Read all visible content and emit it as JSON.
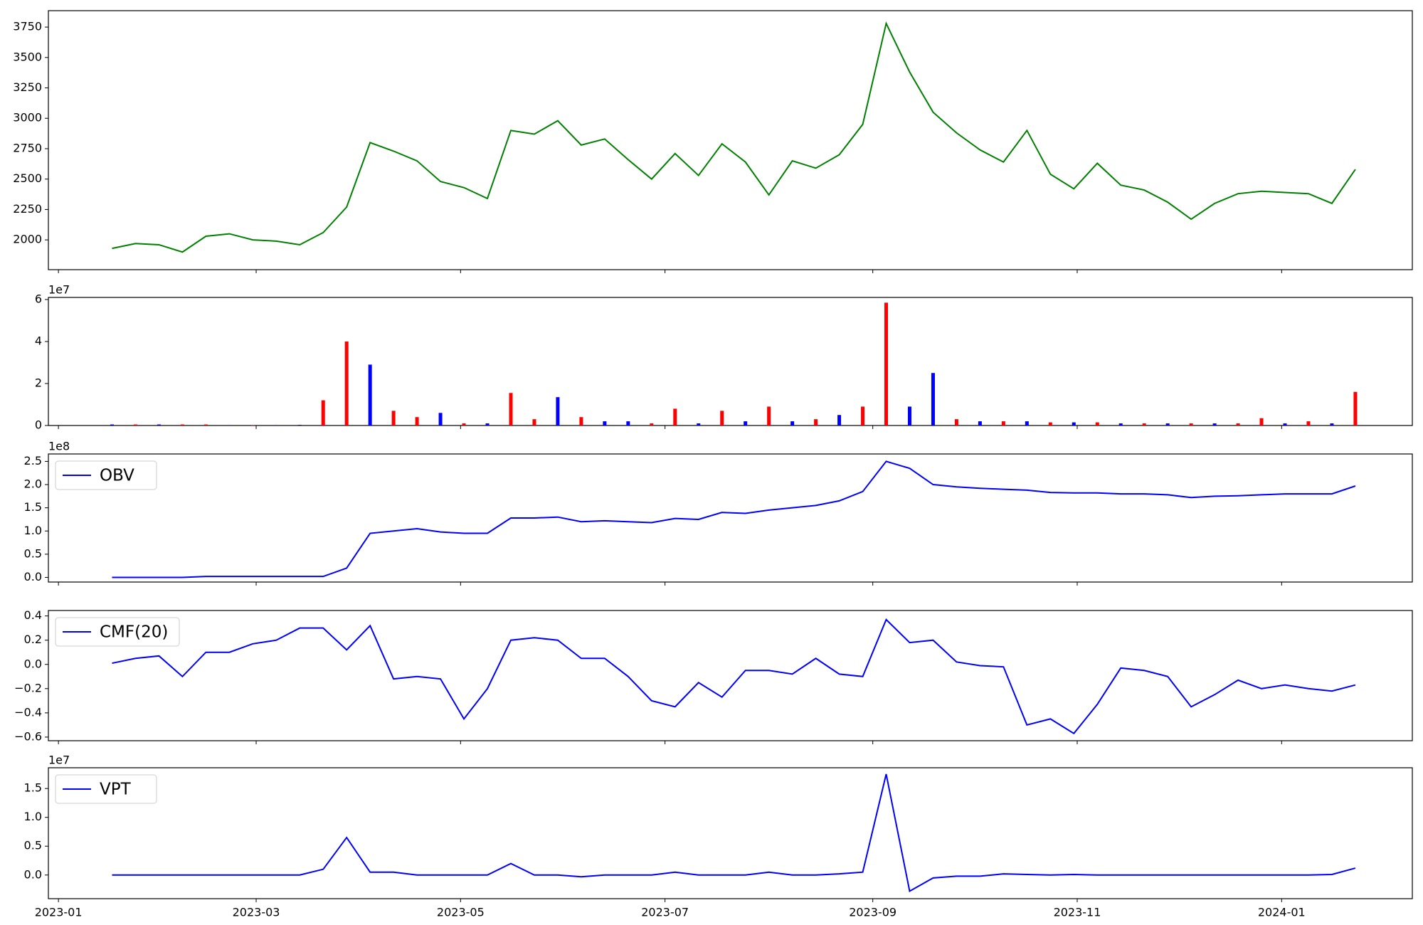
{
  "chart_data": {
    "type": "panels",
    "x": [
      "2023-01-17",
      "2023-01-24",
      "2023-01-31",
      "2023-02-07",
      "2023-02-14",
      "2023-02-21",
      "2023-02-28",
      "2023-03-07",
      "2023-03-14",
      "2023-03-21",
      "2023-03-28",
      "2023-04-04",
      "2023-04-11",
      "2023-04-18",
      "2023-04-25",
      "2023-05-02",
      "2023-05-09",
      "2023-05-16",
      "2023-05-23",
      "2023-05-30",
      "2023-06-06",
      "2023-06-13",
      "2023-06-20",
      "2023-06-27",
      "2023-07-04",
      "2023-07-11",
      "2023-07-18",
      "2023-07-25",
      "2023-08-01",
      "2023-08-08",
      "2023-08-15",
      "2023-08-22",
      "2023-08-29",
      "2023-09-05",
      "2023-09-12",
      "2023-09-19",
      "2023-09-26",
      "2023-10-03",
      "2023-10-10",
      "2023-10-17",
      "2023-10-24",
      "2023-10-31",
      "2023-11-07",
      "2023-11-14",
      "2023-11-21",
      "2023-11-28",
      "2023-12-05",
      "2023-12-12",
      "2023-12-19",
      "2023-12-26",
      "2024-01-02",
      "2024-01-09",
      "2024-01-16",
      "2024-01-23"
    ],
    "xlim": [
      "2022-12-29",
      "2024-02-09"
    ],
    "xticks": [
      {
        "value": "2023-01-01",
        "label": "2023-01"
      },
      {
        "value": "2023-03-01",
        "label": "2023-03"
      },
      {
        "value": "2023-05-01",
        "label": "2023-05"
      },
      {
        "value": "2023-07-01",
        "label": "2023-07"
      },
      {
        "value": "2023-09-01",
        "label": "2023-09"
      },
      {
        "value": "2023-11-01",
        "label": "2023-11"
      },
      {
        "value": "2024-01-01",
        "label": "2024-01"
      }
    ],
    "panels": [
      {
        "type": "line",
        "ylim": [
          1755,
          3885
        ],
        "yticks": [
          2000,
          2250,
          2500,
          2750,
          3000,
          3250,
          3500,
          3750
        ],
        "series": [
          {
            "color": "#008000",
            "values": [
              1930,
              1970,
              1960,
              1900,
              2030,
              2050,
              2000,
              1990,
              1960,
              2060,
              2270,
              2800,
              2730,
              2650,
              2480,
              2430,
              2340,
              2900,
              2870,
              2980,
              2780,
              2830,
              2660,
              2500,
              2710,
              2530,
              2790,
              2640,
              2370,
              2650,
              2590,
              2700,
              2950,
              3780,
              3380,
              3050,
              2880,
              2740,
              2640,
              2900,
              2540,
              2420,
              2630,
              2450,
              2410,
              2310,
              2170,
              2300,
              2380,
              2400,
              2390,
              2380,
              2300,
              2580
            ]
          }
        ]
      },
      {
        "type": "bar",
        "y_offset_label": "1e7",
        "ylim": [
          0,
          6.1
        ],
        "yticks": [
          0,
          2,
          4,
          6
        ],
        "values": [
          0.05,
          0.05,
          0.05,
          0.05,
          0.05,
          0.02,
          0.02,
          0.02,
          0.03,
          1.2,
          4.0,
          2.9,
          0.7,
          0.4,
          0.6,
          0.1,
          0.1,
          1.55,
          0.3,
          1.35,
          0.4,
          0.2,
          0.2,
          0.1,
          0.8,
          0.1,
          0.7,
          0.2,
          0.9,
          0.2,
          0.3,
          0.5,
          0.9,
          5.85,
          0.9,
          2.5,
          0.3,
          0.2,
          0.2,
          0.2,
          0.15,
          0.15,
          0.15,
          0.1,
          0.1,
          0.1,
          0.1,
          0.1,
          0.1,
          0.35,
          0.1,
          0.2,
          0.1,
          1.6
        ],
        "colors": [
          "blue",
          "red",
          "blue",
          "red",
          "red",
          "blue",
          "red",
          "blue",
          "blue",
          "red",
          "red",
          "blue",
          "red",
          "red",
          "blue",
          "red",
          "blue",
          "red",
          "red",
          "blue",
          "red",
          "blue",
          "blue",
          "red",
          "red",
          "blue",
          "red",
          "blue",
          "red",
          "blue",
          "red",
          "blue",
          "red",
          "red",
          "blue",
          "blue",
          "red",
          "blue",
          "red",
          "blue",
          "red",
          "blue",
          "red",
          "blue",
          "red",
          "blue",
          "red",
          "blue",
          "red",
          "red",
          "blue",
          "red",
          "blue",
          "red"
        ]
      },
      {
        "type": "line",
        "y_offset_label": "1e8",
        "ylim": [
          -0.1,
          2.66
        ],
        "legend": "upper left",
        "yticks": [
          {
            "value": 0,
            "label": "0.0"
          },
          {
            "value": 0.5,
            "label": "0.5"
          },
          {
            "value": 1,
            "label": "1.0"
          },
          {
            "value": 1.5,
            "label": "1.5"
          },
          {
            "value": 2,
            "label": "2.0"
          },
          {
            "value": 2.5,
            "label": "2.5"
          }
        ],
        "series": [
          {
            "name": "OBV",
            "color": "blue",
            "values": [
              0,
              0,
              0,
              0,
              0.02,
              0.02,
              0.02,
              0.02,
              0.02,
              0.02,
              0.2,
              0.95,
              1.0,
              1.05,
              0.98,
              0.95,
              0.95,
              1.28,
              1.28,
              1.3,
              1.2,
              1.22,
              1.2,
              1.18,
              1.27,
              1.25,
              1.4,
              1.38,
              1.45,
              1.5,
              1.55,
              1.65,
              1.85,
              2.5,
              2.35,
              2.0,
              1.95,
              1.92,
              1.9,
              1.88,
              1.83,
              1.82,
              1.82,
              1.8,
              1.8,
              1.78,
              1.72,
              1.75,
              1.76,
              1.78,
              1.8,
              1.8,
              1.8,
              1.97
            ]
          }
        ]
      },
      {
        "type": "line",
        "ylim": [
          -0.63,
          0.445
        ],
        "legend": "upper left",
        "yticks": [
          {
            "value": -0.6,
            "label": "−0.6"
          },
          {
            "value": -0.4,
            "label": "−0.4"
          },
          {
            "value": -0.2,
            "label": "−0.2"
          },
          {
            "value": 0,
            "label": "0.0"
          },
          {
            "value": 0.2,
            "label": "0.2"
          },
          {
            "value": 0.4,
            "label": "0.4"
          }
        ],
        "series": [
          {
            "name": "CMF(20)",
            "color": "blue",
            "values": [
              0.01,
              0.05,
              0.07,
              -0.1,
              0.1,
              0.1,
              0.17,
              0.2,
              0.3,
              0.3,
              0.12,
              0.32,
              -0.12,
              -0.1,
              -0.12,
              -0.45,
              -0.2,
              0.2,
              0.22,
              0.2,
              0.05,
              0.05,
              -0.1,
              -0.3,
              -0.35,
              -0.15,
              -0.27,
              -0.05,
              -0.05,
              -0.08,
              0.05,
              -0.08,
              -0.1,
              0.37,
              0.18,
              0.2,
              0.02,
              -0.01,
              -0.02,
              -0.5,
              -0.45,
              -0.57,
              -0.33,
              -0.03,
              -0.05,
              -0.1,
              -0.35,
              -0.25,
              -0.13,
              -0.2,
              -0.17,
              -0.2,
              -0.22,
              -0.17
            ]
          }
        ]
      },
      {
        "type": "line",
        "y_offset_label": "1e7",
        "ylim": [
          -0.41,
          1.86
        ],
        "legend": "upper left",
        "yticks": [
          {
            "value": 0,
            "label": "0.0"
          },
          {
            "value": 0.5,
            "label": "0.5"
          },
          {
            "value": 1,
            "label": "1.0"
          },
          {
            "value": 1.5,
            "label": "1.5"
          }
        ],
        "series": [
          {
            "name": "VPT",
            "color": "blue",
            "values": [
              0,
              0,
              0,
              0,
              0,
              0,
              0,
              0,
              0,
              0.1,
              0.65,
              0.05,
              0.05,
              0,
              0,
              0,
              0,
              0.2,
              0,
              0,
              -0.03,
              0,
              0,
              0,
              0.05,
              0,
              0,
              0,
              0.05,
              0,
              0,
              0.02,
              0.05,
              1.75,
              -0.28,
              -0.05,
              -0.02,
              -0.02,
              0.02,
              0.01,
              0,
              0.01,
              0,
              0,
              0,
              0,
              0,
              0,
              0,
              0,
              0,
              0,
              0.01,
              0.12
            ]
          }
        ]
      }
    ]
  }
}
